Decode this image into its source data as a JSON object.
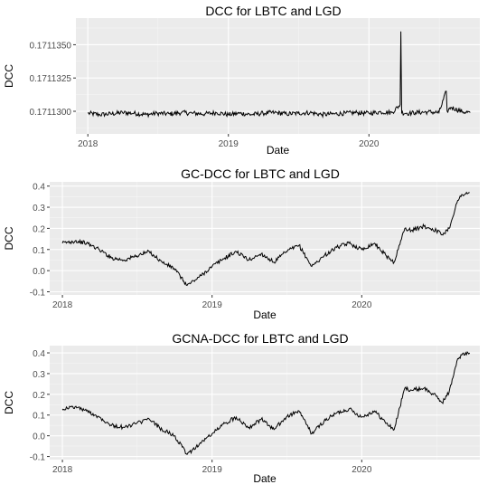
{
  "chart_data": [
    {
      "type": "line",
      "title": "DCC for LBTC and LGD",
      "xlabel": "Date",
      "ylabel": "DCC",
      "x_ticks": [
        "2018",
        "2019",
        "2020"
      ],
      "y_ticks": [
        "0.1711300",
        "0.1711325",
        "0.1711350"
      ],
      "y_tick_values": [
        0.17113,
        0.1711325,
        0.171135
      ],
      "xlim": [
        "2017-12-01",
        "2020-10-15"
      ],
      "ylim": [
        0.1711283,
        0.171137
      ],
      "series": [
        {
          "x": [
            "2018-01-01",
            "2018-02-01",
            "2018-03-01",
            "2018-04-01",
            "2018-05-01",
            "2018-06-01",
            "2018-07-01",
            "2018-08-01",
            "2018-09-01",
            "2018-10-01",
            "2018-11-01",
            "2018-12-01",
            "2019-01-01",
            "2019-02-01",
            "2019-03-01",
            "2019-04-01",
            "2019-05-01",
            "2019-06-01",
            "2019-07-01",
            "2019-08-01",
            "2019-09-01",
            "2019-10-01",
            "2019-11-01",
            "2019-12-01",
            "2020-01-01",
            "2020-02-01",
            "2020-03-01",
            "2020-03-22",
            "2020-03-24",
            "2020-03-26",
            "2020-04-15",
            "2020-05-01",
            "2020-06-01",
            "2020-07-01",
            "2020-07-20",
            "2020-07-22",
            "2020-08-01",
            "2020-09-01",
            "2020-09-20"
          ],
          "y": [
            0.17112985,
            0.17112975,
            0.1711298,
            0.1711299,
            0.17112985,
            0.17112975,
            0.17112985,
            0.1711298,
            0.1711299,
            0.17112985,
            0.1711298,
            0.1711299,
            0.17112975,
            0.17112985,
            0.17112975,
            0.17112985,
            0.1711299,
            0.1711298,
            0.17112985,
            0.1711299,
            0.17112975,
            0.1711298,
            0.17112985,
            0.1711299,
            0.17112985,
            0.17112995,
            0.1711299,
            0.1711305,
            0.171136,
            0.1711299,
            0.17112985,
            0.1711299,
            0.17112995,
            0.1711299,
            0.1711315,
            0.17113,
            0.1711303,
            0.17112995,
            0.1711299
          ]
        }
      ]
    },
    {
      "type": "line",
      "title": "GC-DCC for LBTC and LGD",
      "xlabel": "Date",
      "ylabel": "DCC",
      "x_ticks": [
        "2018",
        "2019",
        "2020"
      ],
      "y_ticks": [
        "-0.1",
        "0.0",
        "0.1",
        "0.2",
        "0.3",
        "0.4"
      ],
      "y_tick_values": [
        -0.1,
        0.0,
        0.1,
        0.2,
        0.3,
        0.4
      ],
      "xlim": [
        "2017-12-01",
        "2020-10-15"
      ],
      "ylim": [
        -0.115,
        0.42
      ],
      "series": [
        {
          "x": [
            "2018-01-01",
            "2018-02-01",
            "2018-03-01",
            "2018-04-01",
            "2018-05-01",
            "2018-06-01",
            "2018-07-01",
            "2018-08-01",
            "2018-09-01",
            "2018-10-01",
            "2018-11-01",
            "2018-12-01",
            "2019-01-01",
            "2019-02-01",
            "2019-03-01",
            "2019-04-01",
            "2019-05-01",
            "2019-06-01",
            "2019-07-01",
            "2019-08-01",
            "2019-09-01",
            "2019-10-01",
            "2019-11-01",
            "2019-12-01",
            "2020-01-01",
            "2020-02-01",
            "2020-03-01",
            "2020-03-20",
            "2020-04-15",
            "2020-05-01",
            "2020-06-01",
            "2020-07-01",
            "2020-07-15",
            "2020-08-01",
            "2020-08-20",
            "2020-09-01",
            "2020-09-20"
          ],
          "y": [
            0.13,
            0.14,
            0.13,
            0.1,
            0.06,
            0.05,
            0.07,
            0.09,
            0.04,
            0.01,
            -0.07,
            -0.03,
            0.02,
            0.06,
            0.09,
            0.05,
            0.08,
            0.04,
            0.09,
            0.12,
            0.02,
            0.07,
            0.11,
            0.13,
            0.1,
            0.13,
            0.07,
            0.04,
            0.2,
            0.19,
            0.21,
            0.19,
            0.17,
            0.2,
            0.32,
            0.36,
            0.37
          ]
        }
      ]
    },
    {
      "type": "line",
      "title": "GCNA-DCC for LBTC and LGD",
      "xlabel": "Date",
      "ylabel": "DCC",
      "x_ticks": [
        "2018",
        "2019",
        "2020"
      ],
      "y_ticks": [
        "-0.1",
        "0.0",
        "0.1",
        "0.2",
        "0.3",
        "0.4"
      ],
      "y_tick_values": [
        -0.1,
        0.0,
        0.1,
        0.2,
        0.3,
        0.4
      ],
      "xlim": [
        "2017-12-01",
        "2020-10-15"
      ],
      "ylim": [
        -0.115,
        0.435
      ],
      "series": [
        {
          "x": [
            "2018-01-01",
            "2018-02-01",
            "2018-03-01",
            "2018-04-01",
            "2018-05-01",
            "2018-06-01",
            "2018-07-01",
            "2018-08-01",
            "2018-09-01",
            "2018-10-01",
            "2018-11-01",
            "2018-12-01",
            "2019-01-01",
            "2019-02-01",
            "2019-03-01",
            "2019-04-01",
            "2019-05-01",
            "2019-06-01",
            "2019-07-01",
            "2019-08-01",
            "2019-09-01",
            "2019-10-01",
            "2019-11-01",
            "2019-12-01",
            "2020-01-01",
            "2020-02-01",
            "2020-03-01",
            "2020-03-20",
            "2020-04-15",
            "2020-05-01",
            "2020-06-01",
            "2020-07-01",
            "2020-07-15",
            "2020-08-01",
            "2020-08-20",
            "2020-09-01",
            "2020-09-20"
          ],
          "y": [
            0.13,
            0.14,
            0.12,
            0.09,
            0.05,
            0.04,
            0.06,
            0.08,
            0.03,
            0.0,
            -0.09,
            -0.04,
            0.01,
            0.06,
            0.09,
            0.04,
            0.08,
            0.03,
            0.09,
            0.12,
            0.01,
            0.07,
            0.11,
            0.13,
            0.09,
            0.12,
            0.06,
            0.03,
            0.23,
            0.22,
            0.23,
            0.19,
            0.16,
            0.21,
            0.36,
            0.39,
            0.4
          ]
        }
      ]
    }
  ]
}
